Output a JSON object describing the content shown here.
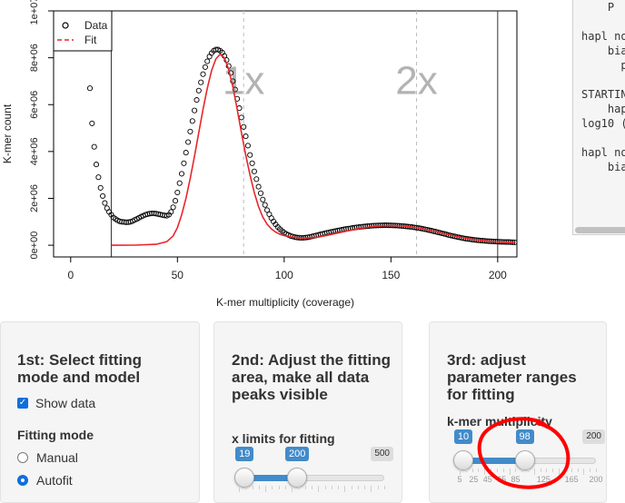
{
  "chart_data": {
    "type": "scatter",
    "xlabel": "K-mer multiplicity (coverage)",
    "ylabel": "K-mer count",
    "xlim": [
      -8,
      209
    ],
    "ylim": [
      -500000,
      10000000
    ],
    "xticks": [
      0,
      50,
      100,
      150,
      200
    ],
    "yticks": [
      0,
      2000000,
      4000000,
      6000000,
      8000000,
      10000000
    ],
    "ytick_labels": [
      "0e+00",
      "2e+06",
      "4e+06",
      "6e+06",
      "8e+06",
      "1e+07"
    ],
    "legend_position": "top-left",
    "series": [
      {
        "name": "Data",
        "style": "open-circle",
        "color": "#000000",
        "points": [
          [
            9,
            6700000
          ],
          [
            10,
            5200000
          ],
          [
            11,
            4200000
          ],
          [
            12,
            3450000
          ],
          [
            13,
            2900000
          ],
          [
            14,
            2450000
          ],
          [
            15,
            2100000
          ],
          [
            16,
            1800000
          ],
          [
            17,
            1580000
          ],
          [
            18,
            1420000
          ],
          [
            19,
            1300000
          ],
          [
            20,
            1180000
          ],
          [
            21,
            1120000
          ],
          [
            22,
            1060000
          ],
          [
            23,
            1020000
          ],
          [
            24,
            1000000
          ],
          [
            25,
            990000
          ],
          [
            26,
            980000
          ],
          [
            27,
            985000
          ],
          [
            28,
            1000000
          ],
          [
            29,
            1030000
          ],
          [
            30,
            1080000
          ],
          [
            31,
            1120000
          ],
          [
            32,
            1170000
          ],
          [
            33,
            1220000
          ],
          [
            34,
            1260000
          ],
          [
            35,
            1300000
          ],
          [
            36,
            1330000
          ],
          [
            37,
            1350000
          ],
          [
            38,
            1360000
          ],
          [
            39,
            1360000
          ],
          [
            40,
            1350000
          ],
          [
            41,
            1330000
          ],
          [
            42,
            1310000
          ],
          [
            43,
            1290000
          ],
          [
            44,
            1270000
          ],
          [
            45,
            1260000
          ],
          [
            46,
            1300000
          ],
          [
            47,
            1420000
          ],
          [
            48,
            1620000
          ],
          [
            49,
            1900000
          ],
          [
            50,
            2250000
          ],
          [
            51,
            2650000
          ],
          [
            52,
            3050000
          ],
          [
            53,
            3500000
          ],
          [
            54,
            3950000
          ],
          [
            55,
            4400000
          ],
          [
            56,
            4850000
          ],
          [
            57,
            5300000
          ],
          [
            58,
            5750000
          ],
          [
            59,
            6200000
          ],
          [
            60,
            6600000
          ],
          [
            61,
            6950000
          ],
          [
            62,
            7300000
          ],
          [
            63,
            7600000
          ],
          [
            64,
            7850000
          ],
          [
            65,
            8050000
          ],
          [
            66,
            8200000
          ],
          [
            67,
            8300000
          ],
          [
            68,
            8350000
          ],
          [
            69,
            8350000
          ],
          [
            70,
            8300000
          ],
          [
            71,
            8220000
          ],
          [
            72,
            8080000
          ],
          [
            73,
            7900000
          ],
          [
            74,
            7650000
          ],
          [
            75,
            7350000
          ],
          [
            76,
            7000000
          ],
          [
            77,
            6650000
          ],
          [
            78,
            6250000
          ],
          [
            79,
            5850000
          ],
          [
            80,
            5450000
          ],
          [
            81,
            5050000
          ],
          [
            82,
            4650000
          ],
          [
            83,
            4250000
          ],
          [
            84,
            3850000
          ],
          [
            85,
            3500000
          ],
          [
            86,
            3150000
          ],
          [
            87,
            2820000
          ],
          [
            88,
            2500000
          ],
          [
            89,
            2220000
          ],
          [
            90,
            1950000
          ],
          [
            91,
            1720000
          ],
          [
            92,
            1500000
          ],
          [
            93,
            1320000
          ],
          [
            94,
            1160000
          ],
          [
            95,
            1010000
          ],
          [
            96,
            890000
          ],
          [
            97,
            780000
          ],
          [
            98,
            690000
          ],
          [
            99,
            610000
          ],
          [
            100,
            540000
          ],
          [
            101,
            480000
          ],
          [
            102,
            440000
          ],
          [
            103,
            400000
          ],
          [
            104,
            370000
          ],
          [
            105,
            345000
          ],
          [
            106,
            330000
          ],
          [
            107,
            320000
          ],
          [
            108,
            315000
          ],
          [
            109,
            318000
          ],
          [
            110,
            325000
          ],
          [
            111,
            338000
          ],
          [
            112,
            355000
          ],
          [
            113,
            375000
          ],
          [
            114,
            398000
          ],
          [
            115,
            420000
          ],
          [
            116,
            442000
          ],
          [
            117,
            465000
          ],
          [
            118,
            488000
          ],
          [
            119,
            510000
          ],
          [
            120,
            530000
          ],
          [
            121,
            550000
          ],
          [
            122,
            570000
          ],
          [
            123,
            590000
          ],
          [
            124,
            608000
          ],
          [
            125,
            626000
          ],
          [
            126,
            643000
          ],
          [
            127,
            660000
          ],
          [
            128,
            676000
          ],
          [
            129,
            692000
          ],
          [
            130,
            708000
          ],
          [
            131,
            722000
          ],
          [
            132,
            736000
          ],
          [
            133,
            750000
          ],
          [
            134,
            762000
          ],
          [
            135,
            774000
          ],
          [
            136,
            786000
          ],
          [
            137,
            796000
          ],
          [
            138,
            806000
          ],
          [
            139,
            815000
          ],
          [
            140,
            823000
          ],
          [
            141,
            830000
          ],
          [
            142,
            836000
          ],
          [
            143,
            841000
          ],
          [
            144,
            845000
          ],
          [
            145,
            848000
          ],
          [
            146,
            850000
          ],
          [
            147,
            851000
          ],
          [
            148,
            851000
          ],
          [
            149,
            850000
          ],
          [
            150,
            848000
          ],
          [
            151,
            845000
          ],
          [
            152,
            841000
          ],
          [
            153,
            836000
          ],
          [
            154,
            830000
          ],
          [
            155,
            823000
          ],
          [
            156,
            815000
          ],
          [
            157,
            806000
          ],
          [
            158,
            796000
          ],
          [
            159,
            785000
          ],
          [
            160,
            773000
          ],
          [
            161,
            760000
          ],
          [
            162,
            746000
          ],
          [
            163,
            731000
          ],
          [
            164,
            715000
          ],
          [
            165,
            698000
          ],
          [
            166,
            680000
          ],
          [
            167,
            661000
          ],
          [
            168,
            641000
          ],
          [
            169,
            620000
          ],
          [
            170,
            598000
          ],
          [
            171,
            576000
          ],
          [
            172,
            553000
          ],
          [
            173,
            530000
          ],
          [
            174,
            507000
          ],
          [
            175,
            484000
          ],
          [
            176,
            461000
          ],
          [
            177,
            438000
          ],
          [
            178,
            416000
          ],
          [
            179,
            395000
          ],
          [
            180,
            374000
          ],
          [
            181,
            354000
          ],
          [
            182,
            335000
          ],
          [
            183,
            317000
          ],
          [
            184,
            300000
          ],
          [
            185,
            284000
          ],
          [
            186,
            269000
          ],
          [
            187,
            255000
          ],
          [
            188,
            242000
          ],
          [
            189,
            230000
          ],
          [
            190,
            219000
          ],
          [
            191,
            209000
          ],
          [
            192,
            200000
          ],
          [
            193,
            192000
          ],
          [
            194,
            185000
          ],
          [
            195,
            178000
          ],
          [
            196,
            172000
          ],
          [
            197,
            166000
          ],
          [
            198,
            161000
          ],
          [
            199,
            156000
          ],
          [
            200,
            152000
          ],
          [
            201,
            148000
          ],
          [
            202,
            144000
          ],
          [
            203,
            140000
          ],
          [
            204,
            137000
          ],
          [
            205,
            134000
          ],
          [
            206,
            131000
          ],
          [
            207,
            128000
          ],
          [
            208,
            125000
          ]
        ]
      },
      {
        "name": "Fit",
        "style": "line",
        "color": "#e8262a",
        "points": [
          [
            19,
            0
          ],
          [
            30,
            2000
          ],
          [
            40,
            40000
          ],
          [
            45,
            150000
          ],
          [
            48,
            400000
          ],
          [
            50,
            750000
          ],
          [
            52,
            1300000
          ],
          [
            54,
            2000000
          ],
          [
            56,
            2850000
          ],
          [
            58,
            3800000
          ],
          [
            60,
            4800000
          ],
          [
            62,
            5800000
          ],
          [
            64,
            6700000
          ],
          [
            66,
            7450000
          ],
          [
            68,
            7950000
          ],
          [
            70,
            8150000
          ],
          [
            72,
            8000000
          ],
          [
            74,
            7500000
          ],
          [
            76,
            6750000
          ],
          [
            78,
            5800000
          ],
          [
            80,
            4800000
          ],
          [
            82,
            3850000
          ],
          [
            84,
            3000000
          ],
          [
            86,
            2250000
          ],
          [
            88,
            1650000
          ],
          [
            90,
            1200000
          ],
          [
            92,
            900000
          ],
          [
            94,
            700000
          ],
          [
            96,
            560000
          ],
          [
            98,
            470000
          ],
          [
            100,
            410000
          ],
          [
            104,
            340000
          ],
          [
            108,
            310000
          ],
          [
            112,
            310000
          ],
          [
            116,
            350000
          ],
          [
            120,
            420000
          ],
          [
            125,
            520000
          ],
          [
            130,
            620000
          ],
          [
            135,
            710000
          ],
          [
            140,
            780000
          ],
          [
            145,
            825000
          ],
          [
            150,
            840000
          ],
          [
            155,
            825000
          ],
          [
            160,
            780000
          ],
          [
            165,
            700000
          ],
          [
            170,
            600000
          ],
          [
            175,
            490000
          ],
          [
            180,
            390000
          ],
          [
            185,
            300000
          ],
          [
            190,
            230000
          ],
          [
            195,
            180000
          ],
          [
            200,
            145000
          ],
          [
            205,
            125000
          ],
          [
            208,
            115000
          ]
        ]
      }
    ],
    "vlines_solid": [
      19,
      200
    ],
    "vlines_dashed": [
      81,
      162
    ],
    "annotations": [
      {
        "text": "1x",
        "x": 81,
        "y": 7000000
      },
      {
        "text": "2x",
        "x": 162,
        "y": 7000000
      }
    ]
  },
  "code_panel": {
    "lines": [
      "    P",
      "",
      "hapl no",
      "    bia",
      "      pe",
      "",
      "STARTIN",
      "    hap",
      "log10 (",
      "",
      "hapl no",
      "    bia"
    ]
  },
  "panel1": {
    "title": "1st: Select fitting mode and model",
    "show_data_label": "Show data",
    "fitting_mode_label": "Fitting mode",
    "options": [
      "Manual",
      "Autofit"
    ],
    "selected": "Autofit"
  },
  "panel2": {
    "title": "2nd: Adjust the fitting area, make all data peaks visible",
    "slider_label": "x limits for fitting",
    "slider": {
      "min": 0,
      "max": 500,
      "from": 19,
      "to": 200,
      "from_label": "19",
      "to_label": "200",
      "max_label": "500"
    }
  },
  "panel3": {
    "title": "3rd: adjust parameter ranges for fitting",
    "slider_label": "k-mer multiplicity",
    "slider": {
      "min": 5,
      "max": 200,
      "from": 10,
      "to": 98,
      "from_label": "10",
      "to_label": "98",
      "max_label": "200"
    },
    "tick_labels": [
      "5",
      "25",
      "45",
      "65",
      "85",
      "125",
      "165",
      "200"
    ],
    "annotation_color": "#ff0000"
  }
}
